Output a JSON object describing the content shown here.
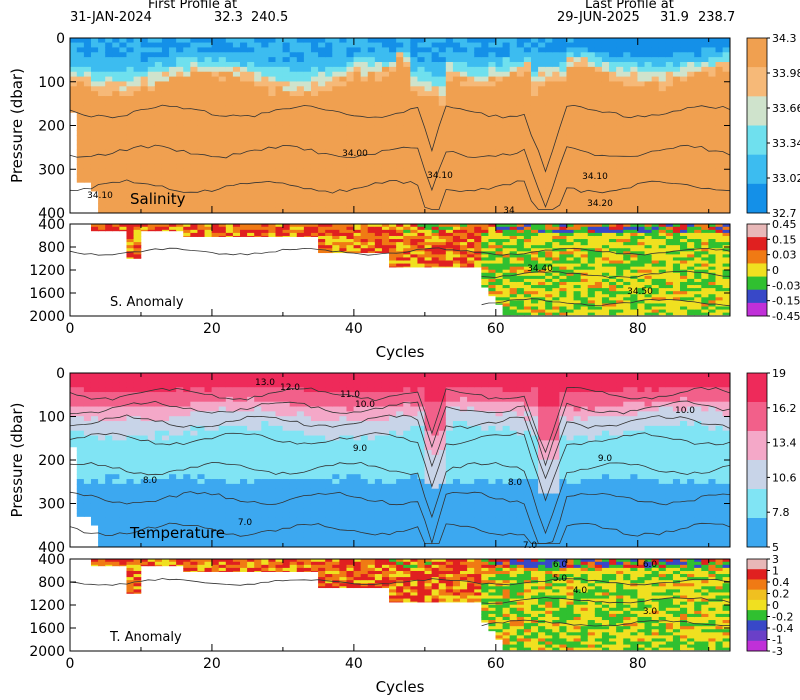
{
  "header": {
    "first_label": "First Profile at",
    "first_date": "31-JAN-2024",
    "first_lat": "32.3",
    "first_lon": "240.5",
    "last_label": "Last Profile at",
    "last_date": "29-JUN-2025",
    "last_lat": "31.9",
    "last_lon": "238.7"
  },
  "chart_data": [
    {
      "type": "heatmap",
      "panel": "Salinity",
      "title": "Salinity",
      "xlabel": "",
      "ylabel": "Pressure (dbar)",
      "xlim": [
        0,
        93
      ],
      "ylim": [
        400,
        0
      ],
      "yticks": [
        0,
        100,
        200,
        300,
        400
      ],
      "colorbar": {
        "labels": [
          "34.3",
          "33.98",
          "33.66",
          "33.34",
          "33.02",
          "32.7"
        ],
        "colors": [
          "#f0a050",
          "#f6b978",
          "#cfe3cc",
          "#6fe0ee",
          "#3cbcf0",
          "#1490e8"
        ]
      },
      "contours": [
        "34.00",
        "34.10",
        "34.10",
        "34.10",
        "34.20",
        "34"
      ]
    },
    {
      "type": "heatmap",
      "panel": "S. Anomaly",
      "title": "S. Anomaly",
      "xlabel": "Cycles",
      "ylabel": "",
      "xlim": [
        0,
        93
      ],
      "ylim": [
        2000,
        400
      ],
      "xticks": [
        0,
        20,
        40,
        60,
        80
      ],
      "yticks": [
        400,
        800,
        1200,
        1600,
        2000
      ],
      "colorbar": {
        "labels": [
          "0.45",
          "0.15",
          "0.03",
          "0",
          "-0.03",
          "-0.15",
          "-0.45"
        ],
        "colors": [
          "#e8b8b8",
          "#e02020",
          "#f07a14",
          "#f0e020",
          "#30c030",
          "#3848c8",
          "#c030d8"
        ]
      },
      "contours": [
        "34.40",
        "34.50"
      ]
    },
    {
      "type": "heatmap",
      "panel": "Temperature",
      "title": "Temperature",
      "xlabel": "",
      "ylabel": "Pressure (dbar)",
      "xlim": [
        0,
        93
      ],
      "ylim": [
        400,
        0
      ],
      "yticks": [
        0,
        100,
        200,
        300,
        400
      ],
      "colorbar": {
        "labels": [
          "19",
          "16.2",
          "13.4",
          "10.6",
          "7.8",
          "5"
        ],
        "colors": [
          "#ee2a5a",
          "#f2608a",
          "#f4a8c8",
          "#c8d4e8",
          "#80e4f4",
          "#3ca8f0"
        ]
      },
      "contours": [
        "13.0",
        "12.0",
        "11.0",
        "10.0",
        "10.0",
        "9.0",
        "8.0",
        "8.0",
        "7.0",
        "7.0",
        "9.0"
      ]
    },
    {
      "type": "heatmap",
      "panel": "T. Anomaly",
      "title": "T. Anomaly",
      "xlabel": "Cycles",
      "ylabel": "",
      "xlim": [
        0,
        93
      ],
      "ylim": [
        2000,
        400
      ],
      "xticks": [
        0,
        20,
        40,
        60,
        80
      ],
      "yticks": [
        400,
        800,
        1200,
        1600,
        2000
      ],
      "colorbar": {
        "labels": [
          "3",
          "1",
          "0.4",
          "0.2",
          "0",
          "-0.2",
          "-0.4",
          "-1",
          "-3"
        ],
        "colors": [
          "#e8b8b8",
          "#e02020",
          "#f07a14",
          "#f0c020",
          "#f0e020",
          "#30c030",
          "#3848c8",
          "#6a40c8",
          "#c030d8"
        ]
      },
      "contours": [
        "6.0",
        "6.0",
        "5.0",
        "4.0",
        "3.0"
      ]
    }
  ]
}
